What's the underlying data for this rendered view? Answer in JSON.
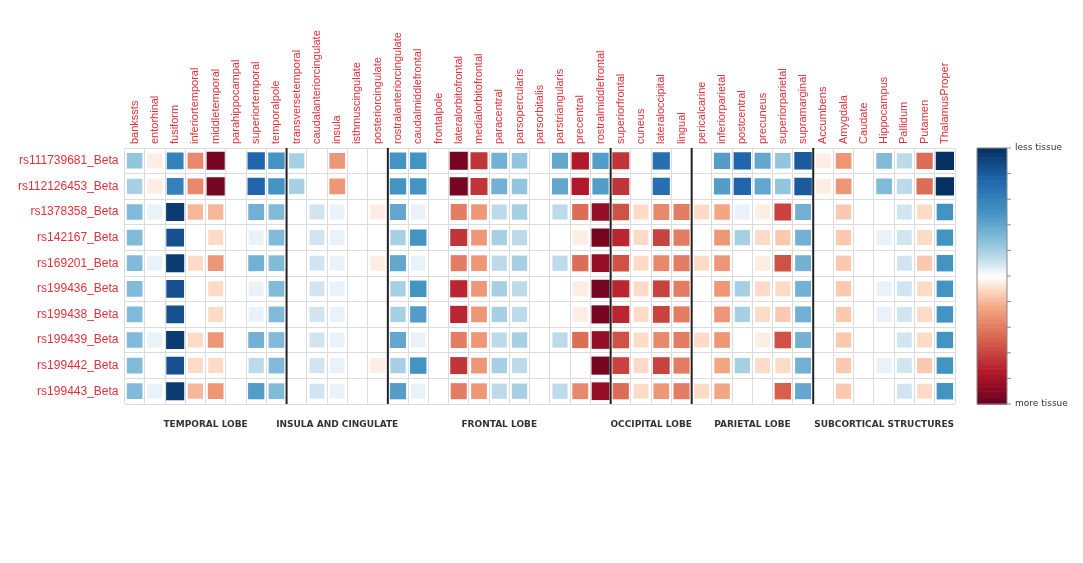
{
  "chart_data": {
    "type": "heatmap",
    "categories": [
      "bankssts",
      "entorhinal",
      "fusiform",
      "inferiortemporal",
      "middletemporal",
      "parahippocampal",
      "superiortemporal",
      "temporalpole",
      "transversetemporal",
      "caudalanteriorcingulate",
      "insula",
      "isthmuscingulate",
      "posteriorcingulate",
      "rostralanteriorcingulate",
      "caudalmiddlefrontal",
      "frontalpole",
      "lateralorbitofrontal",
      "medialorbitofrontal",
      "paracentral",
      "parsopercularis",
      "parsorbitalis",
      "parstriangularis",
      "precentral",
      "rostralmiddlefrontal",
      "superiorfrontal",
      "cuneus",
      "lateraloccipital",
      "lingual",
      "pericalcarine",
      "inferiorparietal",
      "postcentral",
      "precuneus",
      "superiorparietal",
      "supramarginal",
      "Accumbens",
      "Amygdala",
      "Caudate",
      "Hippocampus",
      "Pallidum",
      "Putamen",
      "ThalamusProper"
    ],
    "y_categories": [
      "rs111739681_Beta",
      "rs112126453_Beta",
      "rs1378358_Beta",
      "rs142167_Beta",
      "rs169201_Beta",
      "rs199436_Beta",
      "rs199438_Beta",
      "rs199439_Beta",
      "rs199442_Beta",
      "rs199443_Beta"
    ],
    "cells": [
      [
        0.25,
        -0.05,
        0.6,
        -0.35,
        -0.95,
        0,
        0.75,
        0.5,
        0.2,
        0,
        -0.3,
        0,
        0,
        0.5,
        0.5,
        0,
        -0.95,
        -0.65,
        0.35,
        0.25,
        0,
        0.4,
        -0.75,
        0.45,
        -0.65,
        0,
        0.7,
        0,
        0,
        0.45,
        0.75,
        0.4,
        0.25,
        0.8,
        -0.05,
        -0.3,
        0,
        0.3,
        0.15,
        -0.45,
        1
      ],
      [
        0.2,
        -0.05,
        0.6,
        -0.35,
        -0.95,
        0,
        0.75,
        0.5,
        0.2,
        0,
        -0.3,
        0,
        0,
        0.5,
        0.5,
        0,
        -0.95,
        -0.65,
        0.35,
        0.25,
        0,
        0.4,
        -0.75,
        0.45,
        -0.65,
        0,
        0.7,
        0,
        0,
        0.45,
        0.75,
        0.4,
        0.25,
        0.8,
        -0.05,
        -0.3,
        0,
        0.3,
        0.15,
        -0.45,
        1
      ],
      [
        0.3,
        0.05,
        0.95,
        -0.2,
        -0.2,
        0,
        0.35,
        0.3,
        0,
        0.1,
        0.05,
        0,
        -0.05,
        0.4,
        0.05,
        0,
        -0.4,
        -0.3,
        0.15,
        0.2,
        0,
        0.15,
        -0.45,
        -0.85,
        -0.55,
        -0.1,
        -0.35,
        -0.4,
        -0.1,
        -0.25,
        0.05,
        -0.05,
        -0.6,
        0.35,
        0,
        -0.15,
        0,
        0,
        0.1,
        -0.1,
        0.5
      ],
      [
        0.3,
        0,
        0.85,
        0,
        -0.1,
        0,
        0.05,
        0.3,
        0,
        0.1,
        0.05,
        0,
        0,
        0.2,
        0.5,
        0,
        -0.65,
        -0.3,
        0.2,
        0.15,
        0,
        0,
        -0.05,
        -0.95,
        -0.7,
        -0.1,
        -0.6,
        -0.4,
        0,
        -0.3,
        0.2,
        -0.1,
        -0.15,
        0.35,
        0,
        -0.15,
        0,
        0.05,
        0.1,
        -0.1,
        0.5
      ],
      [
        0.3,
        0.05,
        0.95,
        -0.1,
        -0.3,
        0,
        0.35,
        0.3,
        0,
        0.1,
        0.05,
        0,
        -0.05,
        0.4,
        0.05,
        0,
        -0.4,
        -0.3,
        0.15,
        0.2,
        0,
        0.15,
        -0.45,
        -0.85,
        -0.55,
        -0.1,
        -0.35,
        -0.4,
        -0.1,
        -0.3,
        0,
        -0.05,
        -0.55,
        0.35,
        0,
        -0.15,
        0,
        0,
        0.1,
        -0.15,
        0.5
      ],
      [
        0.3,
        0,
        0.85,
        0,
        -0.1,
        0,
        0.05,
        0.3,
        0,
        0.1,
        0.05,
        0,
        0,
        0.2,
        0.5,
        0,
        -0.7,
        -0.3,
        0.2,
        0.15,
        0,
        0,
        -0.05,
        -0.95,
        -0.7,
        -0.1,
        -0.6,
        -0.4,
        0,
        -0.3,
        0.2,
        -0.1,
        -0.1,
        0.35,
        0,
        -0.15,
        0,
        0.05,
        0.1,
        -0.1,
        0.5
      ],
      [
        0.3,
        0,
        0.85,
        0,
        -0.1,
        0,
        0.05,
        0.3,
        0,
        0.1,
        0.05,
        0,
        0,
        0.2,
        0.45,
        0,
        -0.7,
        -0.3,
        0.2,
        0.15,
        0,
        0,
        -0.05,
        -0.95,
        -0.7,
        -0.1,
        -0.6,
        -0.4,
        0,
        -0.3,
        0.2,
        -0.1,
        -0.15,
        0.35,
        0,
        -0.15,
        0,
        0.05,
        0.1,
        -0.1,
        0.5
      ],
      [
        0.3,
        0.05,
        0.95,
        -0.1,
        -0.3,
        0,
        0.35,
        0.3,
        0,
        0.1,
        0.05,
        0,
        0,
        0.4,
        0.05,
        0,
        -0.4,
        -0.3,
        0.15,
        0.2,
        0,
        0.15,
        -0.45,
        -0.85,
        -0.55,
        -0.1,
        -0.35,
        -0.4,
        -0.1,
        -0.3,
        0,
        -0.05,
        -0.55,
        0.35,
        0,
        -0.15,
        0,
        0,
        0.1,
        -0.1,
        0.5
      ],
      [
        0.3,
        0,
        0.85,
        -0.1,
        -0.1,
        0,
        0.15,
        0.3,
        0,
        0.1,
        0.05,
        0,
        -0.05,
        0.2,
        0.5,
        0,
        -0.65,
        -0.3,
        0.2,
        0.15,
        0,
        0,
        0,
        -0.95,
        -0.6,
        -0.1,
        -0.6,
        -0.4,
        0,
        -0.25,
        0.2,
        -0.1,
        -0.1,
        0.35,
        0,
        -0.15,
        0,
        0.05,
        0.1,
        -0.15,
        0.5
      ],
      [
        0.3,
        0.05,
        0.95,
        -0.2,
        -0.3,
        0,
        0.45,
        0.3,
        0,
        0.1,
        0.05,
        0,
        0,
        0.45,
        0.05,
        0,
        -0.4,
        -0.3,
        0.15,
        0.2,
        0,
        0.15,
        -0.35,
        -0.85,
        -0.45,
        -0.1,
        -0.3,
        -0.4,
        -0.1,
        -0.25,
        0,
        0,
        -0.5,
        0.4,
        0,
        -0.15,
        0,
        0,
        0.1,
        -0.1,
        0.5
      ]
    ],
    "clim": [
      -1,
      1
    ],
    "cticks": [
      {
        "value": -1,
        "label": "more tissue"
      },
      {
        "value": -0.8,
        "label": null
      },
      {
        "value": -0.6,
        "label": null
      },
      {
        "value": -0.4,
        "label": null
      },
      {
        "value": -0.2,
        "label": null
      },
      {
        "value": 0,
        "label": null
      },
      {
        "value": 0.2,
        "label": null
      },
      {
        "value": 0.4,
        "label": null
      },
      {
        "value": 0.6,
        "label": null
      },
      {
        "value": 0.8,
        "label": null
      },
      {
        "value": 1,
        "label": "less tissue"
      }
    ],
    "annotations": [
      "TEMPORAL LOBE",
      "INSULA AND CINGULATE",
      "FRONTAL LOBE",
      "OCCIPITAL LOBE",
      "PARIETAL LOBE",
      "SUBCORTICAL STRUCTURES"
    ],
    "grid": true
  }
}
